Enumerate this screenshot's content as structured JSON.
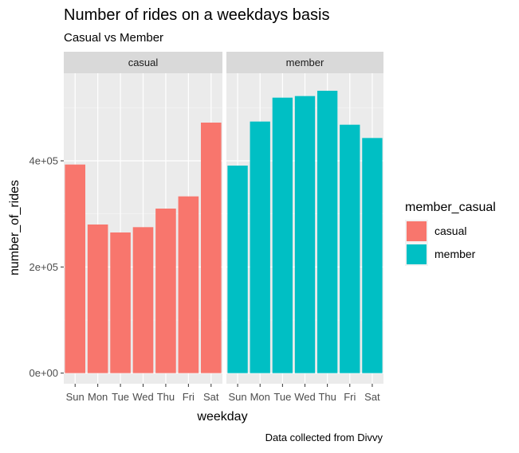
{
  "chart_data": {
    "type": "bar",
    "title": "Number of rides on a weekdays basis",
    "subtitle": "Casual vs Member",
    "xlabel": "weekday",
    "ylabel": "number_of_rides",
    "caption": "Data collected from Divvy",
    "categories": [
      "Sun",
      "Mon",
      "Tue",
      "Wed",
      "Thu",
      "Fri",
      "Sat"
    ],
    "y_ticks": [
      {
        "value": 0,
        "label": "0e+00"
      },
      {
        "value": 200000,
        "label": "2e+05"
      },
      {
        "value": 400000,
        "label": "4e+05"
      }
    ],
    "ylim": [
      -20000,
      565000
    ],
    "grid": true,
    "facets": [
      {
        "label": "casual",
        "color": "#F8766D",
        "values": [
          393000,
          280000,
          265000,
          275000,
          310000,
          333000,
          472000
        ]
      },
      {
        "label": "member",
        "color": "#00BFC4",
        "values": [
          391000,
          474000,
          519000,
          522000,
          532000,
          468000,
          443000
        ]
      }
    ],
    "legend": {
      "title": "member_casual",
      "placement": "right",
      "entries": [
        {
          "label": "casual",
          "color": "#F8766D"
        },
        {
          "label": "member",
          "color": "#00BFC4"
        }
      ]
    }
  }
}
